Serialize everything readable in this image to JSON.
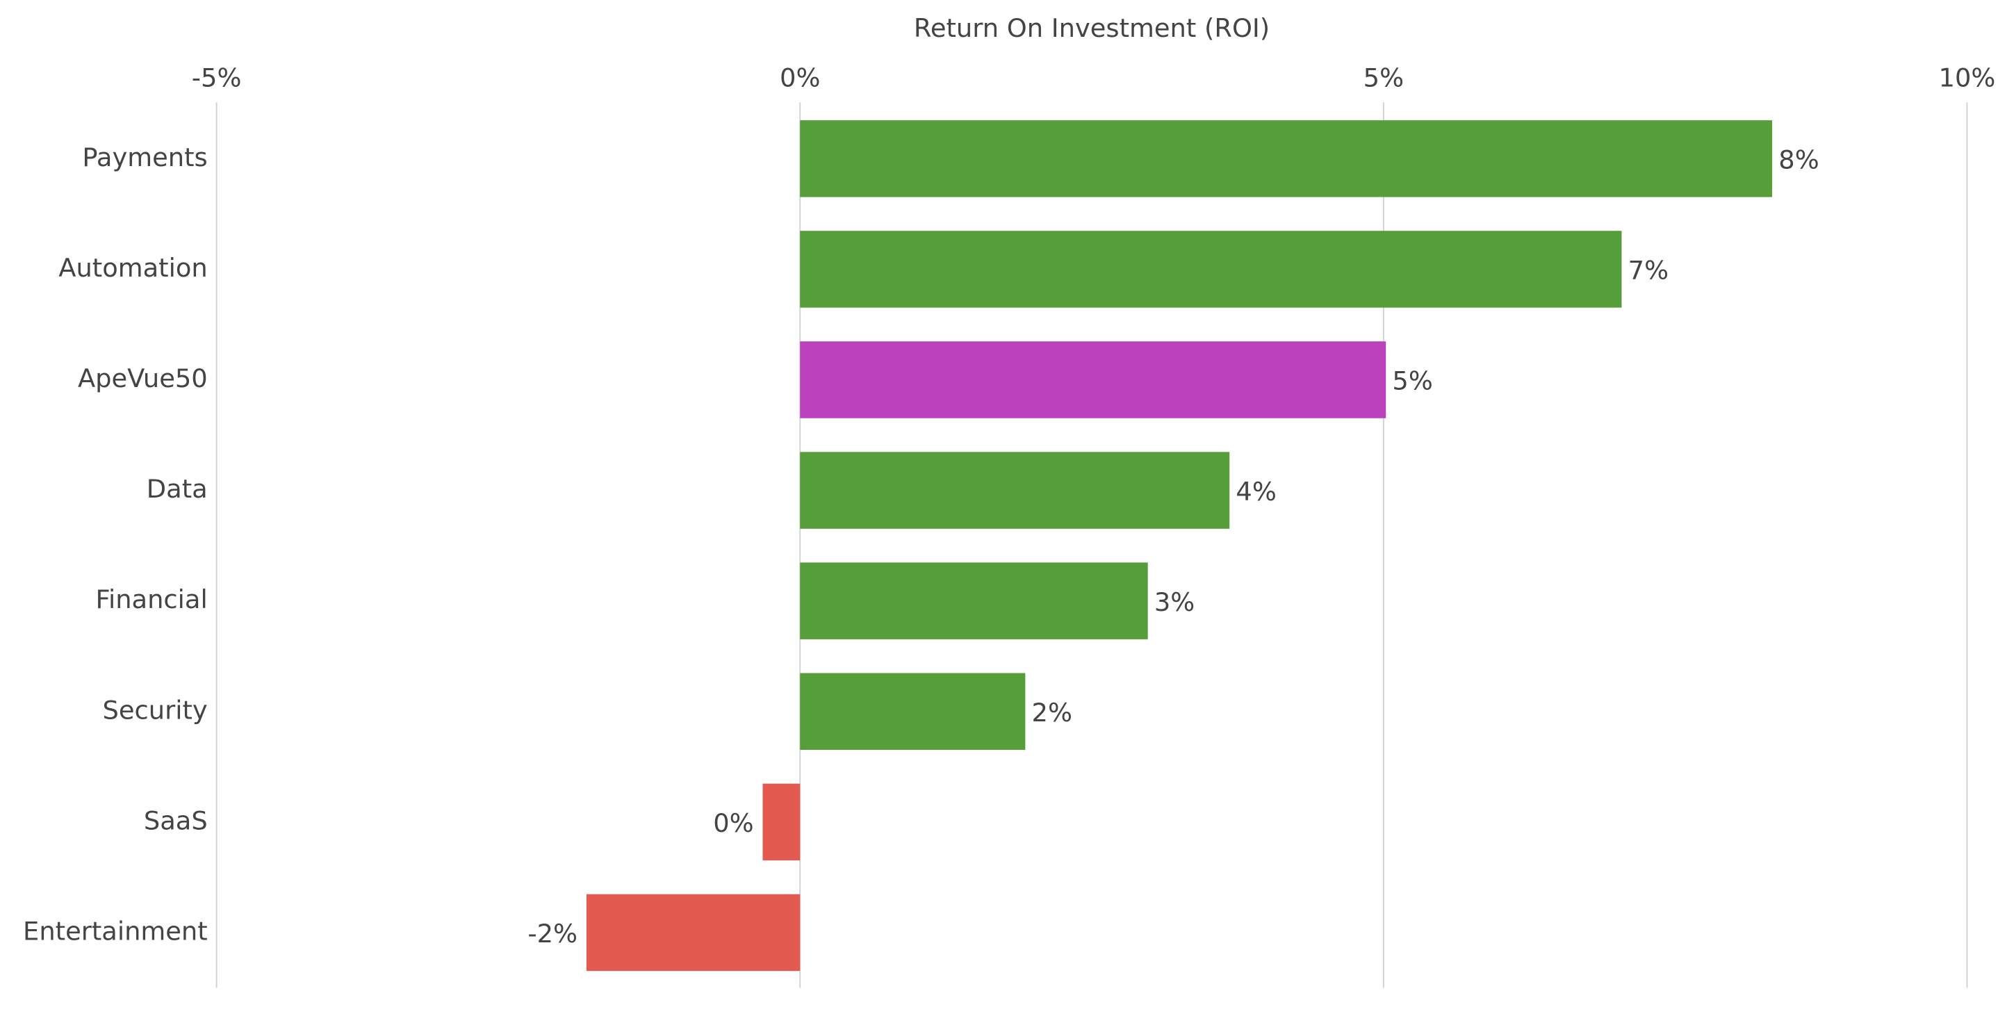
{
  "chart_data": {
    "type": "bar",
    "orientation": "horizontal",
    "x_label": "Return On Investment (ROI)",
    "categories": [
      "Payments",
      "Automation",
      "ApeVue50",
      "Data",
      "Financial",
      "Security",
      "SaaS",
      "Entertainment"
    ],
    "values": [
      8.33,
      7.04,
      5.02,
      3.68,
      2.98,
      1.93,
      -0.32,
      -1.83
    ],
    "value_labels": [
      "8%",
      "7%",
      "5%",
      "4%",
      "3%",
      "2%",
      "0%",
      "-2%"
    ],
    "colors": [
      "#569e3a",
      "#569e3a",
      "#bb40bb",
      "#569e3a",
      "#569e3a",
      "#569e3a",
      "#e35a50",
      "#e35a50"
    ],
    "xlim": [
      -5,
      10
    ],
    "xticks": [
      {
        "value": -5,
        "label": "-5%"
      },
      {
        "value": 0,
        "label": "0%"
      },
      {
        "value": 5,
        "label": "5%"
      },
      {
        "value": 10,
        "label": "10%"
      }
    ],
    "grid": true
  }
}
